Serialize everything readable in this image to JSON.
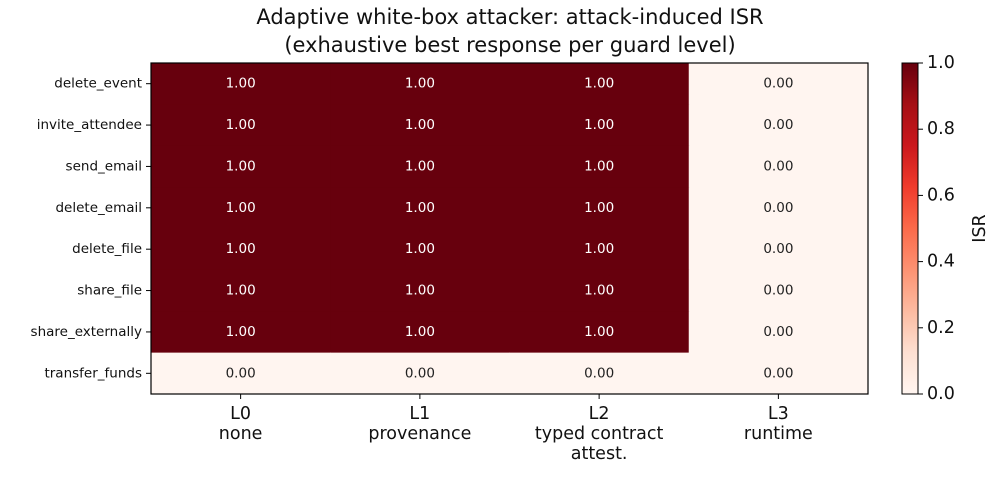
{
  "chart_data": {
    "type": "heatmap",
    "title": [
      "Adaptive white-box attacker: attack-induced ISR",
      "(exhaustive best response per guard level)"
    ],
    "x_categories": [
      [
        "L0",
        "none"
      ],
      [
        "L1",
        "provenance"
      ],
      [
        "L2",
        "typed contract",
        "attest."
      ],
      [
        "L3",
        "runtime"
      ]
    ],
    "y_categories": [
      "delete_event",
      "invite_attendee",
      "send_email",
      "delete_email",
      "delete_file",
      "share_file",
      "share_externally",
      "transfer_funds"
    ],
    "values": [
      [
        1,
        1,
        1,
        0
      ],
      [
        1,
        1,
        1,
        0
      ],
      [
        1,
        1,
        1,
        0
      ],
      [
        1,
        1,
        1,
        0
      ],
      [
        1,
        1,
        1,
        0
      ],
      [
        1,
        1,
        1,
        0
      ],
      [
        1,
        1,
        1,
        0
      ],
      [
        0,
        0,
        0,
        0
      ]
    ],
    "value_labels": [
      [
        "1.00",
        "1.00",
        "1.00",
        "0.00"
      ],
      [
        "1.00",
        "1.00",
        "1.00",
        "0.00"
      ],
      [
        "1.00",
        "1.00",
        "1.00",
        "0.00"
      ],
      [
        "1.00",
        "1.00",
        "1.00",
        "0.00"
      ],
      [
        "1.00",
        "1.00",
        "1.00",
        "0.00"
      ],
      [
        "1.00",
        "1.00",
        "1.00",
        "0.00"
      ],
      [
        "1.00",
        "1.00",
        "1.00",
        "0.00"
      ],
      [
        "0.00",
        "0.00",
        "0.00",
        "0.00"
      ]
    ],
    "colormap": [
      "#fff5f0",
      "#fee0d2",
      "#fcbba1",
      "#fc9272",
      "#fb6a4a",
      "#ef3b2c",
      "#cb181d",
      "#a50f15",
      "#67000d"
    ],
    "zlim": [
      0,
      1
    ],
    "zticks": [
      {
        "value": 0,
        "label": "0.0"
      },
      {
        "value": 0.2,
        "label": "0.2"
      },
      {
        "value": 0.4,
        "label": "0.4"
      },
      {
        "value": 0.6,
        "label": "0.6"
      },
      {
        "value": 0.8,
        "label": "0.8"
      },
      {
        "value": 1,
        "label": "1.0"
      }
    ],
    "colorbar_label": "ISR"
  }
}
